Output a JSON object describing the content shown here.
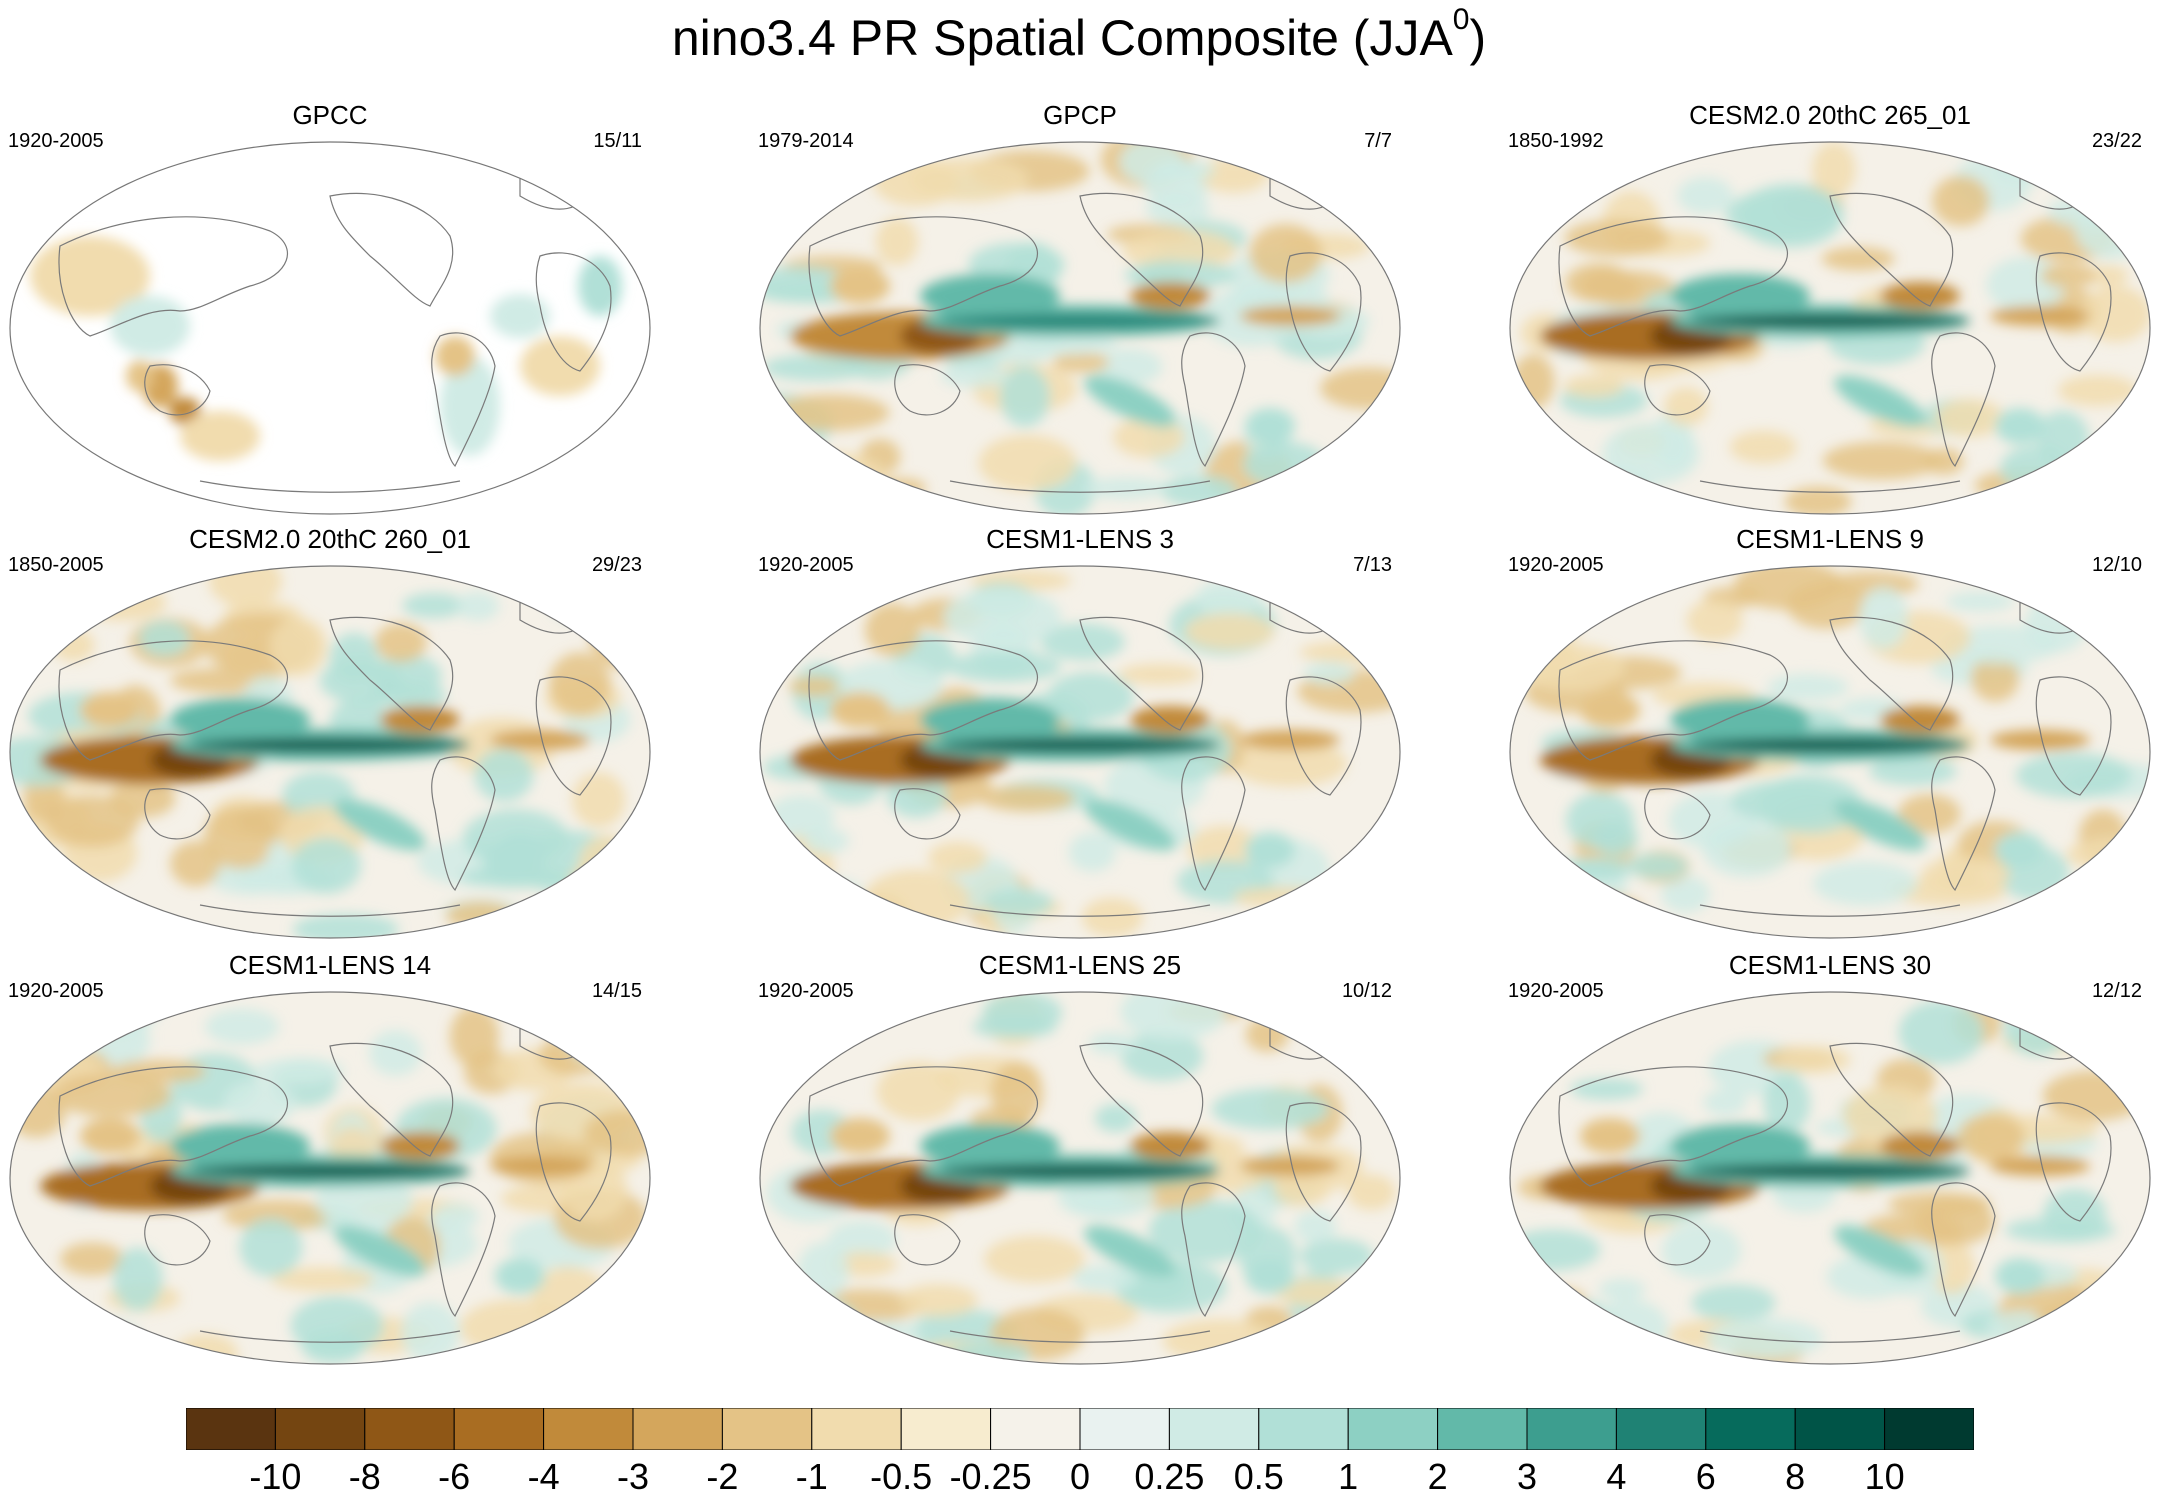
{
  "title": {
    "main": "nino3.4 PR Spatial Composite (JJA",
    "sup": "0",
    "close": ")"
  },
  "panels": [
    {
      "title": "GPCC",
      "years": "1920-2005",
      "ratio": "15/11",
      "type": "obs-land"
    },
    {
      "title": "GPCP",
      "years": "1979-2014",
      "ratio": "7/7",
      "type": "obs"
    },
    {
      "title": "CESM2.0 20thC 265_01",
      "years": "1850-1992",
      "ratio": "23/22",
      "type": "model"
    },
    {
      "title": "CESM2.0 20thC 260_01",
      "years": "1850-2005",
      "ratio": "29/23",
      "type": "model"
    },
    {
      "title": "CESM1-LENS 3",
      "years": "1920-2005",
      "ratio": "7/13",
      "type": "model"
    },
    {
      "title": "CESM1-LENS 9",
      "years": "1920-2005",
      "ratio": "12/10",
      "type": "model"
    },
    {
      "title": "CESM1-LENS 14",
      "years": "1920-2005",
      "ratio": "14/15",
      "type": "model"
    },
    {
      "title": "CESM1-LENS 25",
      "years": "1920-2005",
      "ratio": "10/12",
      "type": "model"
    },
    {
      "title": "CESM1-LENS 30",
      "years": "1920-2005",
      "ratio": "12/12",
      "type": "model"
    }
  ],
  "colorbar": {
    "colors": [
      "#5a3410",
      "#744511",
      "#8f5716",
      "#a96d22",
      "#c18a3a",
      "#d4a65c",
      "#e4c386",
      "#f1dcae",
      "#f7eccf",
      "#f5f2ea",
      "#e9f2f0",
      "#d0ebe5",
      "#b1e0d7",
      "#8dd0c3",
      "#62b9a9",
      "#3d9e8f",
      "#1f8274",
      "#066b5c",
      "#005447",
      "#003a30"
    ],
    "labels": [
      "-10",
      "-8",
      "-6",
      "-4",
      "-3",
      "-2",
      "-1",
      "-0.5",
      "-0.25",
      "0",
      "0.25",
      "0.5",
      "1",
      "2",
      "3",
      "4",
      "6",
      "8",
      "10"
    ]
  }
}
